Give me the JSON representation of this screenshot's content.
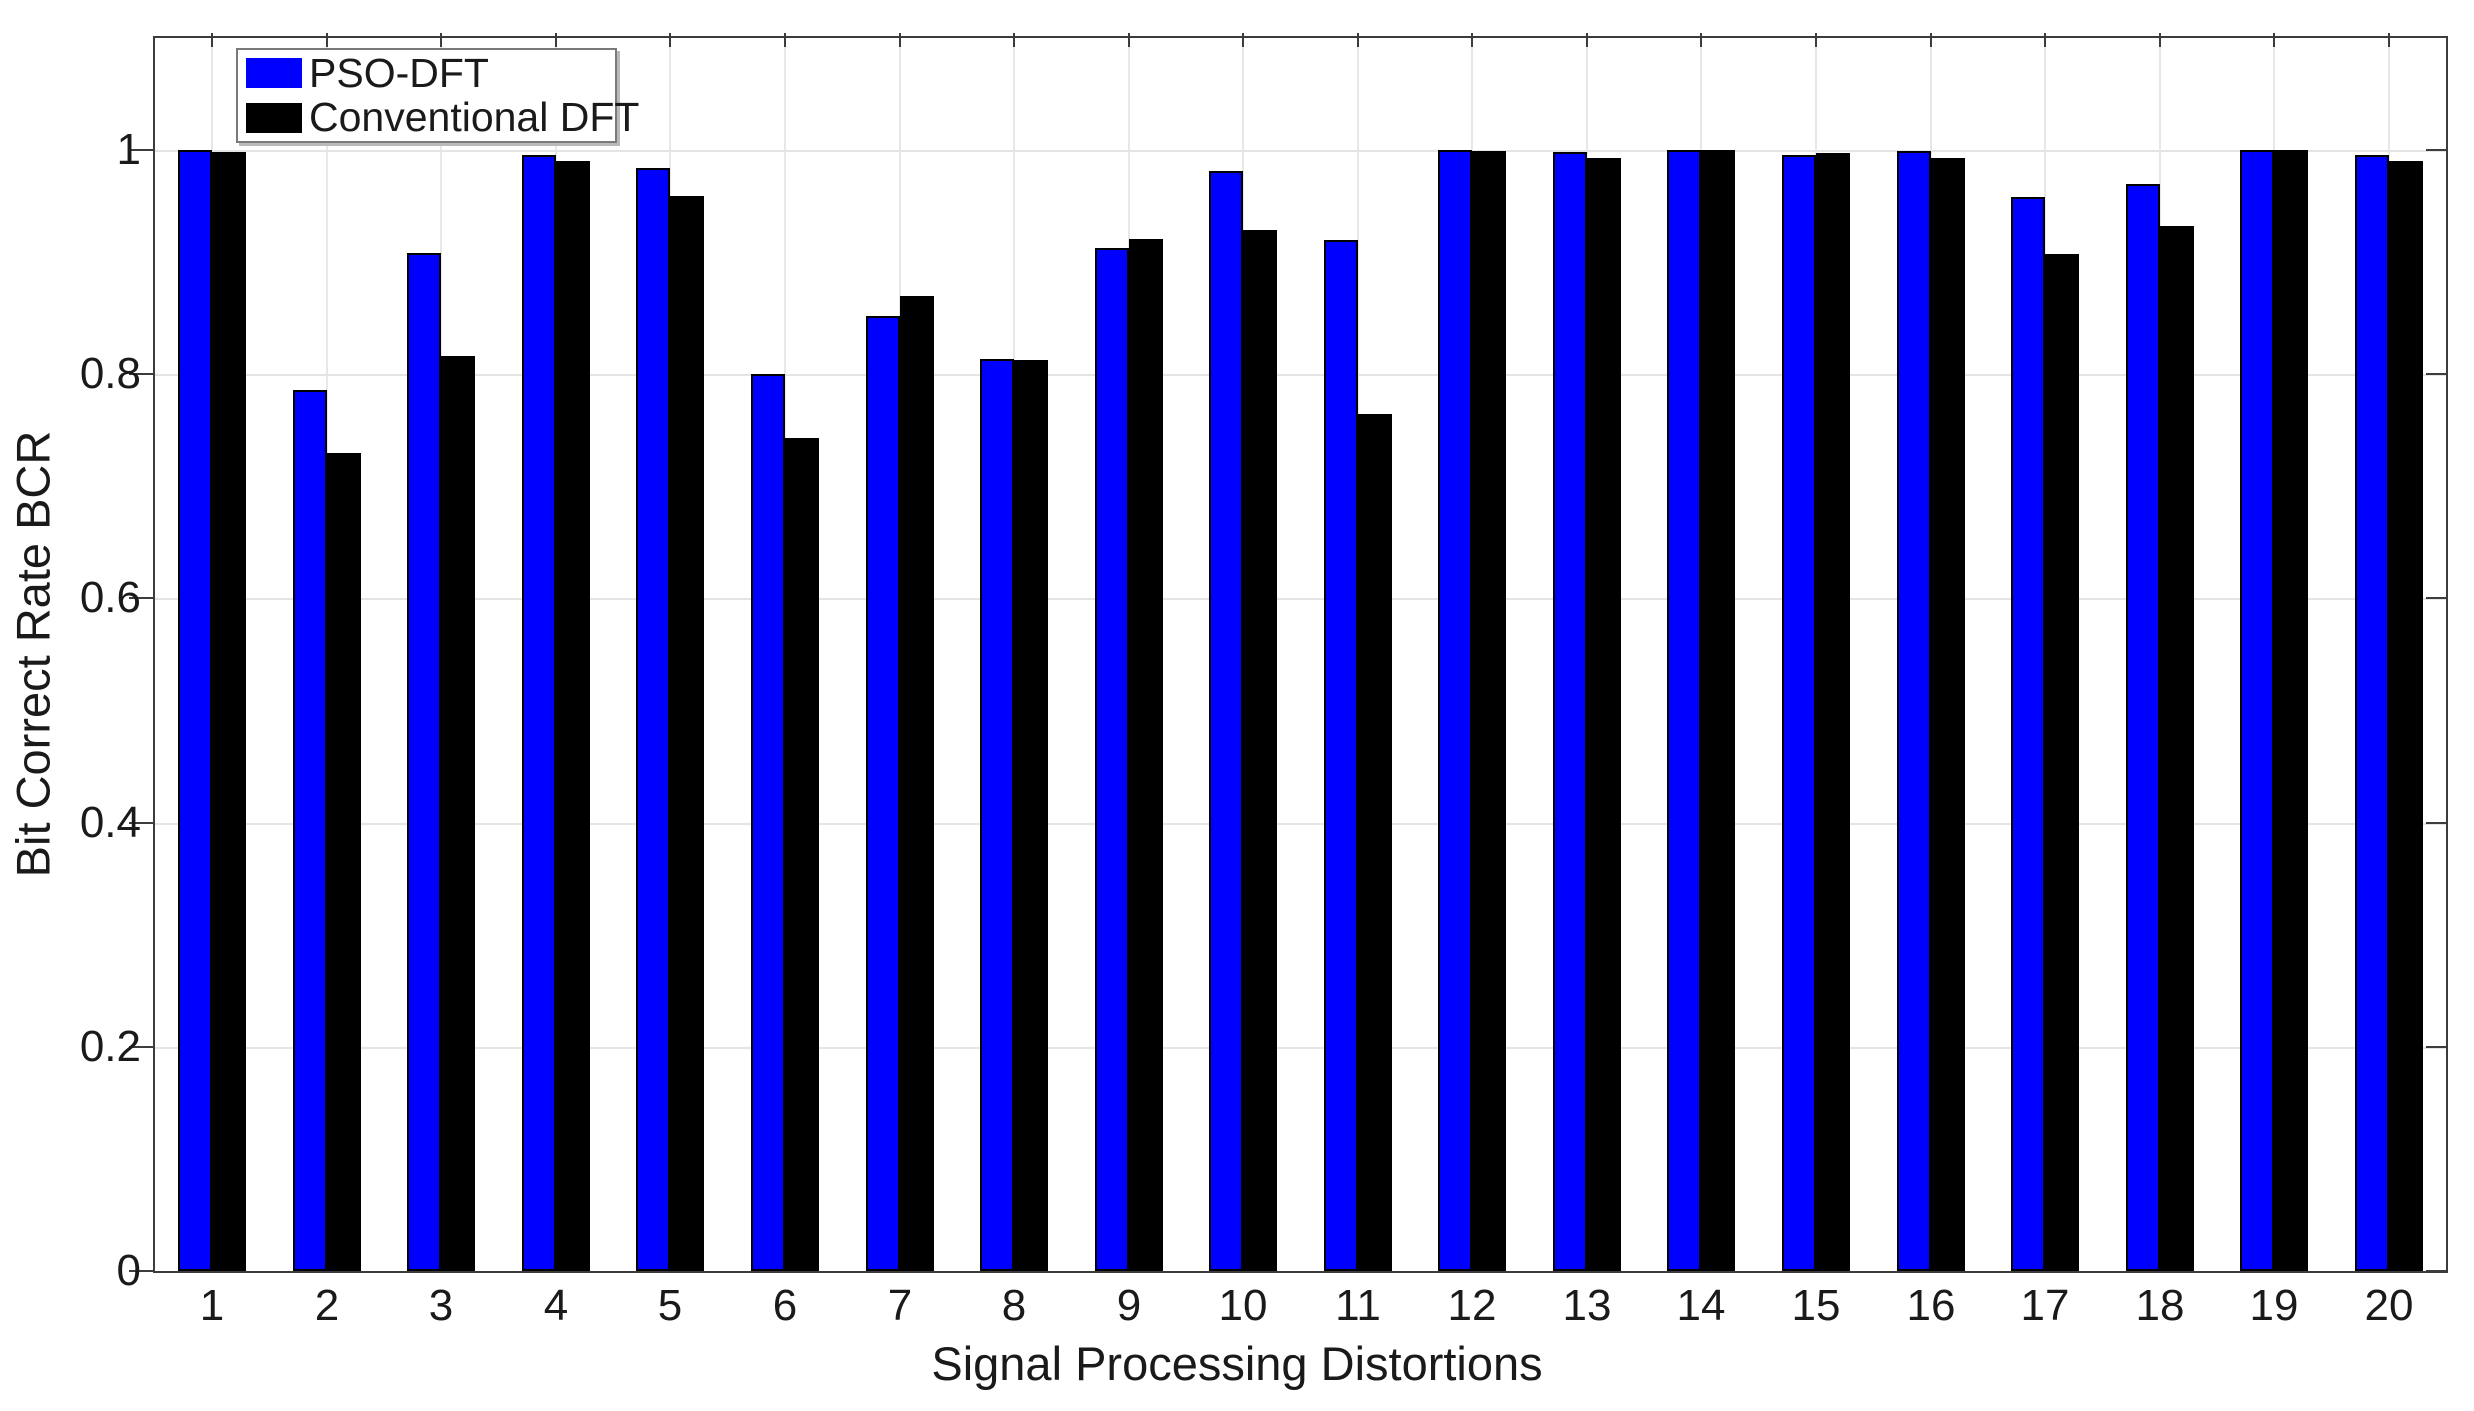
{
  "figure": {
    "background": "#ffffff",
    "axis_color": "#3c3c3c",
    "grid_color": "#e4e4e4",
    "text_color": "#1a1a1a"
  },
  "chart_data": {
    "type": "bar",
    "title": "",
    "xlabel": "Signal Processing Distortions",
    "ylabel": "Bit Correct Rate BCR",
    "categories": [
      "1",
      "2",
      "3",
      "4",
      "5",
      "6",
      "7",
      "8",
      "9",
      "10",
      "11",
      "12",
      "13",
      "14",
      "15",
      "16",
      "17",
      "18",
      "19",
      "20"
    ],
    "series": [
      {
        "name": "PSO-DFT",
        "color": "#0000ff",
        "values": [
          1.0,
          0.786,
          0.908,
          0.996,
          0.984,
          0.8,
          0.852,
          0.814,
          0.913,
          0.981,
          0.92,
          1.0,
          0.998,
          1.0,
          0.996,
          0.999,
          0.958,
          0.97,
          1.0,
          0.996
        ]
      },
      {
        "name": "Conventional DFT",
        "color": "#000000",
        "values": [
          0.998,
          0.73,
          0.816,
          0.99,
          0.959,
          0.743,
          0.87,
          0.813,
          0.921,
          0.929,
          0.765,
          0.999,
          0.993,
          1.0,
          0.997,
          0.993,
          0.907,
          0.932,
          1.0,
          0.99
        ]
      }
    ],
    "ylim": [
      0,
      1.1
    ],
    "yticks": [
      0,
      0.2,
      0.4,
      0.6,
      0.8,
      1
    ],
    "ytick_labels": [
      "0",
      "0.2",
      "0.4",
      "0.6",
      "0.8",
      "1"
    ],
    "grid": true,
    "legend_position": "top-left"
  }
}
